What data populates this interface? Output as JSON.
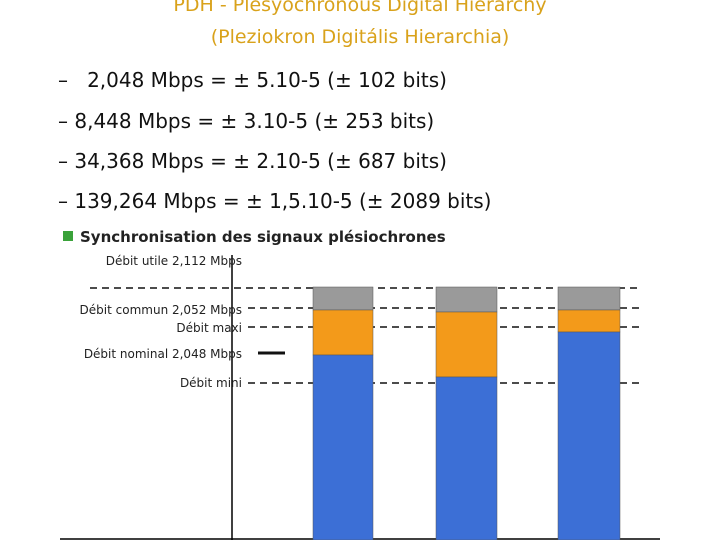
{
  "header": {
    "title": "PDH - Plesyochronous Digital Hierarchy",
    "subtitle": "(Pleziokron Digitális Hierarchia)"
  },
  "bullets": [
    "–   2,048 Mbps = ± 5.10-5 (± 102 bits)",
    "– 8,448 Mbps = ± 3.10-5 (± 253 bits)",
    "– 34,368 Mbps = ± 2.10-5 (± 687 bits)",
    "– 139,264 Mbps = ± 1,5.10-5 (± 2089 bits)"
  ],
  "figure": {
    "heading": "Synchronisation des signaux plésiochrones",
    "labels": [
      "Débit utile 2,112 Mbps",
      "Débit commun 2,052 Mbps",
      "Débit maxi",
      "Débit nominal 2,048 Mbps",
      "Débit mini"
    ]
  }
}
